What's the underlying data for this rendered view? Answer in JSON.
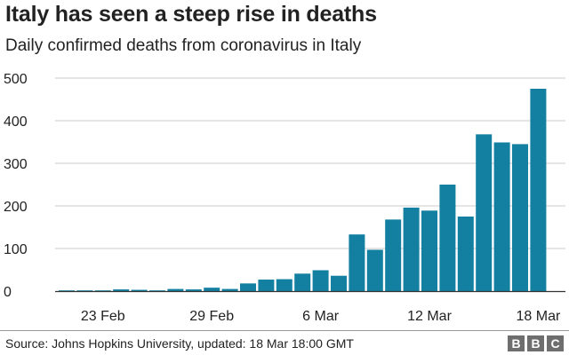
{
  "header": {
    "title": "Italy has seen a steep rise in deaths",
    "subtitle": "Daily confirmed deaths from coronavirus in Italy"
  },
  "footer": {
    "source": "Source: Johns Hopkins University, updated:  18 Mar 18:00 GMT",
    "logo_letters": [
      "B",
      "B",
      "C"
    ]
  },
  "colors": {
    "bar": "#1380A1",
    "grid": "#cbcbcb",
    "baseline": "#333333"
  },
  "chart_data": {
    "type": "bar",
    "title": "Italy has seen a steep rise in deaths",
    "subtitle": "Daily confirmed deaths from coronavirus in Italy",
    "xlabel": "",
    "ylabel": "",
    "ylim": [
      0,
      500
    ],
    "yticks": [
      0,
      100,
      200,
      300,
      400,
      500
    ],
    "grid": true,
    "categories": [
      "21 Feb",
      "22 Feb",
      "23 Feb",
      "24 Feb",
      "25 Feb",
      "26 Feb",
      "27 Feb",
      "28 Feb",
      "29 Feb",
      "1 Mar",
      "2 Mar",
      "3 Mar",
      "4 Mar",
      "5 Mar",
      "6 Mar",
      "7 Mar",
      "8 Mar",
      "9 Mar",
      "10 Mar",
      "11 Mar",
      "12 Mar",
      "13 Mar",
      "14 Mar",
      "15 Mar",
      "16 Mar",
      "17 Mar",
      "18 Mar"
    ],
    "values": [
      1,
      1,
      1,
      4,
      3,
      1,
      5,
      4,
      8,
      5,
      18,
      27,
      28,
      41,
      49,
      36,
      133,
      97,
      168,
      196,
      189,
      250,
      175,
      368,
      349,
      345,
      475
    ],
    "xtick_labels": [
      {
        "label": "23 Feb",
        "category": "23 Feb"
      },
      {
        "label": "29 Feb",
        "category": "29 Feb"
      },
      {
        "label": "6 Mar",
        "category": "6 Mar"
      },
      {
        "label": "12 Mar",
        "category": "12 Mar"
      },
      {
        "label": "18 Mar",
        "category": "18 Mar"
      }
    ]
  }
}
